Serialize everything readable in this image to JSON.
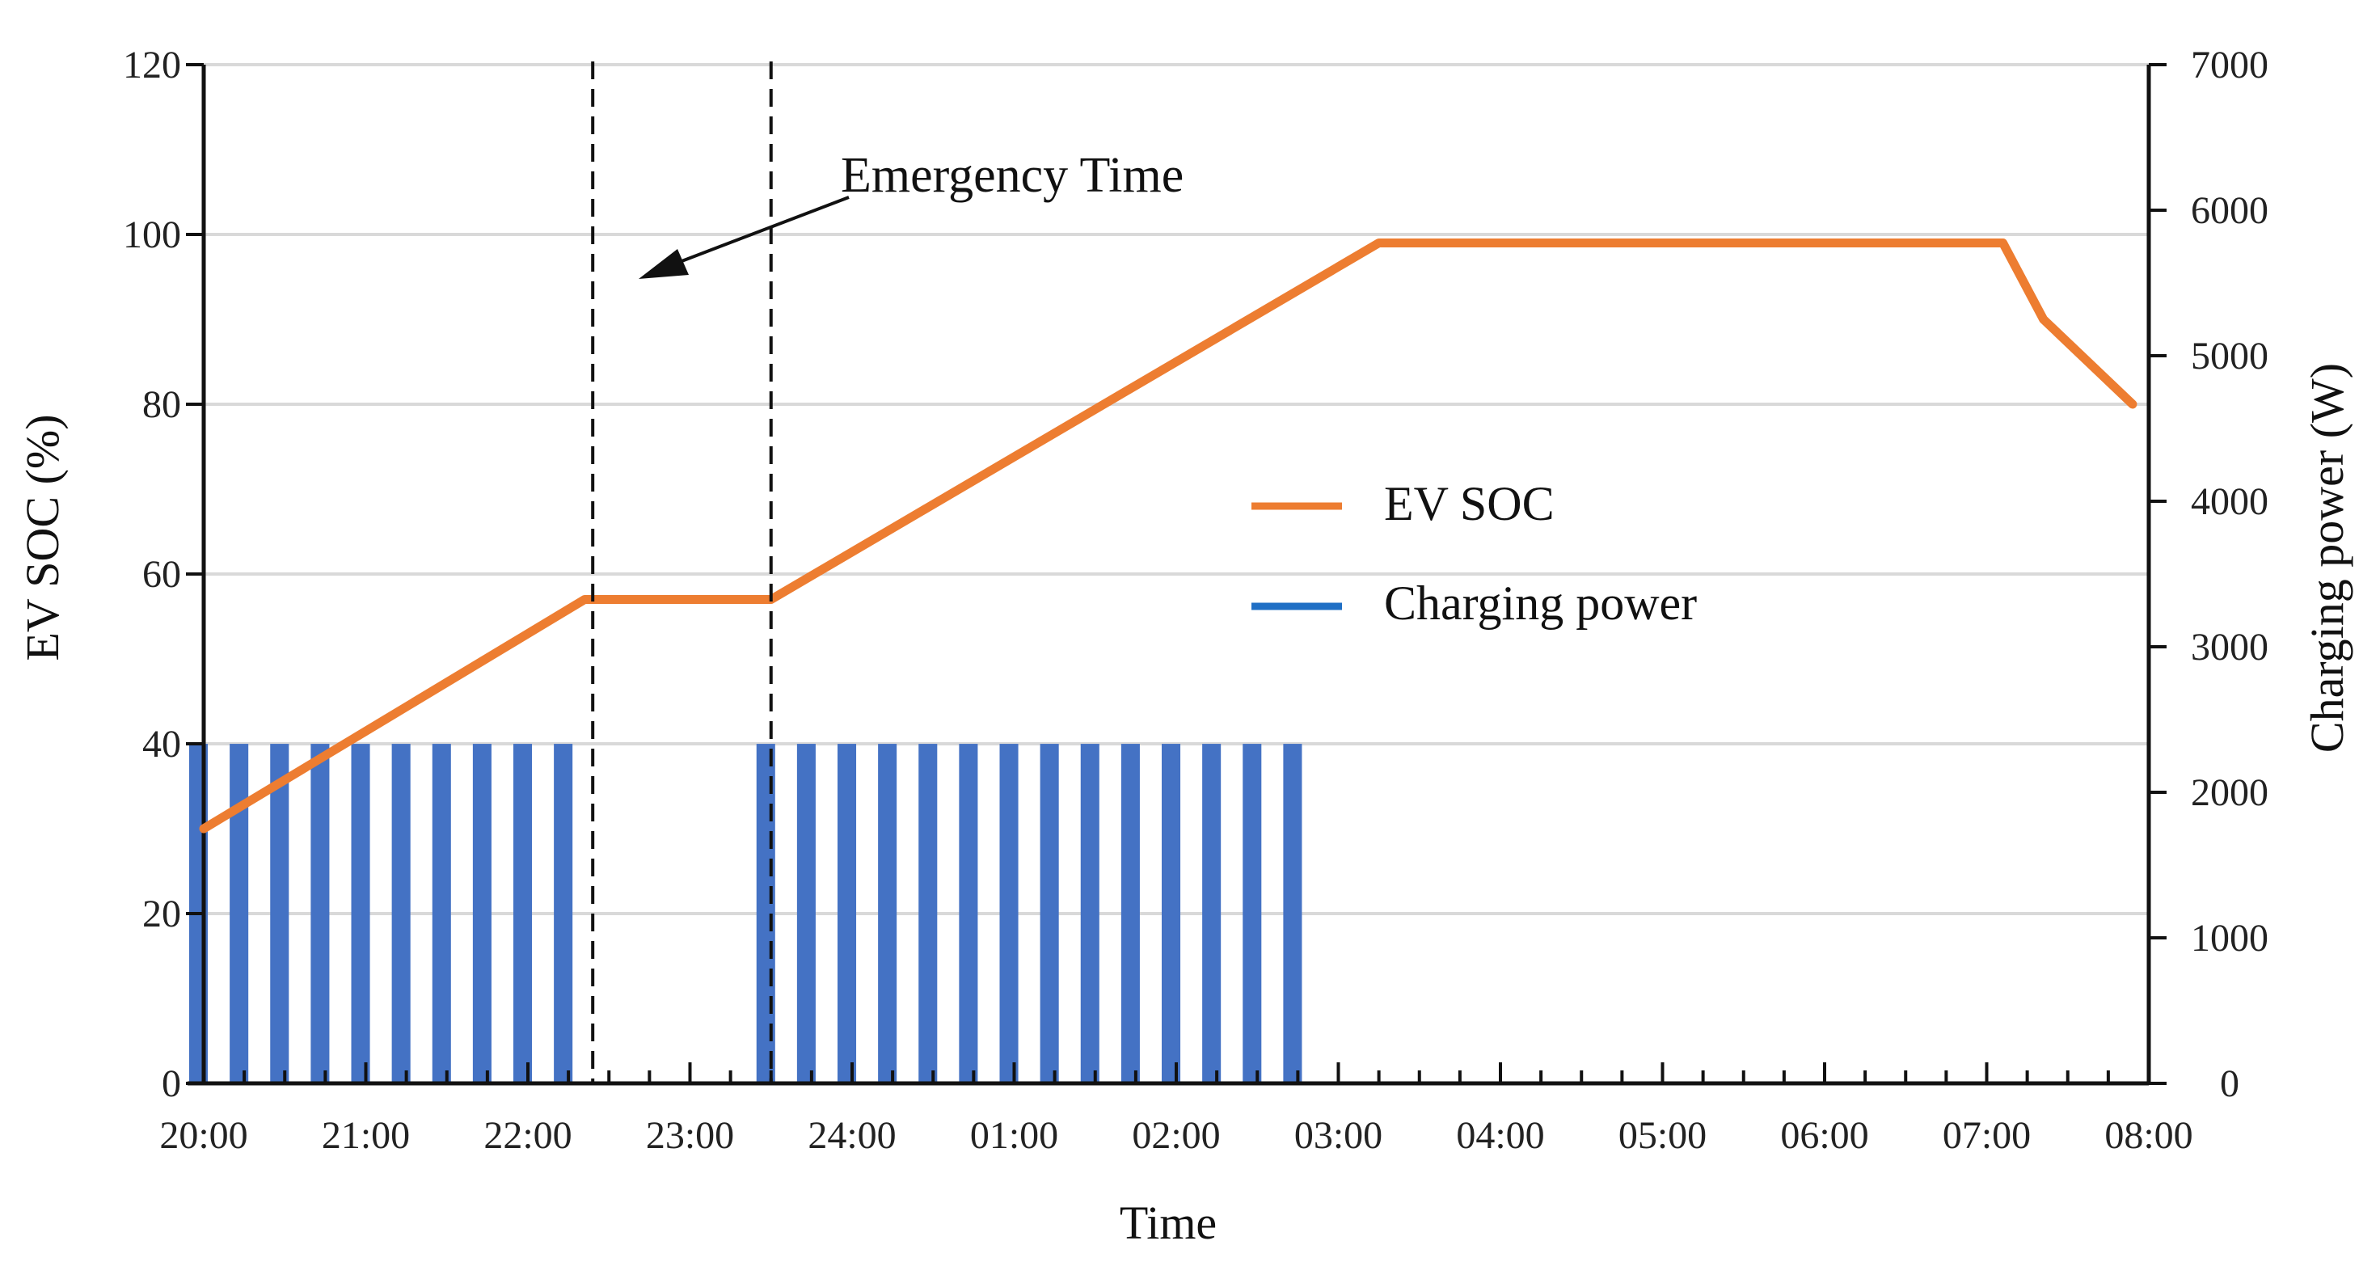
{
  "chart_data": {
    "type": "bar+line",
    "title": "",
    "xlabel": "Time",
    "ylabel_left": "EV SOC (%)",
    "ylabel_right": "Charging power (W)",
    "x_ticks": [
      "20:00",
      "21:00",
      "22:00",
      "23:00",
      "24:00",
      "01:00",
      "02:00",
      "03:00",
      "04:00",
      "05:00",
      "06:00",
      "07:00",
      "08:00"
    ],
    "x_range_hours": [
      0,
      12
    ],
    "ylim_left": [
      0,
      120
    ],
    "yticks_left": [
      0,
      20,
      40,
      60,
      80,
      100,
      120
    ],
    "ylim_right": [
      0,
      7000
    ],
    "yticks_right": [
      0,
      1000,
      2000,
      3000,
      4000,
      5000,
      6000,
      7000
    ],
    "grid": "horizontal",
    "series": [
      {
        "name": "EV SOC",
        "type": "line",
        "axis": "left",
        "color": "#ED7D31",
        "x_hours": [
          0,
          2.35,
          3.5,
          7.25,
          11.1,
          11.35,
          11.9
        ],
        "values": [
          30,
          57,
          57,
          99,
          99,
          90,
          80
        ]
      },
      {
        "name": "Charging power",
        "type": "bar",
        "axis": "right",
        "color": "#4472C4",
        "x_hours": [
          0,
          0.25,
          0.5,
          0.75,
          1.0,
          1.25,
          1.5,
          1.75,
          2.0,
          2.25,
          3.5,
          3.75,
          4.0,
          4.25,
          4.5,
          4.75,
          5.0,
          5.25,
          5.5,
          5.75,
          6.0,
          6.25,
          6.5,
          6.75
        ],
        "values": [
          2333,
          2333,
          2333,
          2333,
          2333,
          2333,
          2333,
          2333,
          2333,
          2333,
          2333,
          2333,
          2333,
          2333,
          2333,
          2333,
          2333,
          2333,
          2333,
          2333,
          2333,
          2333,
          2333,
          2333
        ]
      }
    ],
    "legend": {
      "position": "center-right",
      "entries": [
        {
          "label": "EV SOC",
          "color": "#ED7D31"
        },
        {
          "label": "Charging power",
          "color": "#1F6FC5"
        }
      ]
    },
    "emergency_window_hours": [
      2.4,
      3.5
    ],
    "annotation": {
      "text": "Emergency Time"
    }
  }
}
